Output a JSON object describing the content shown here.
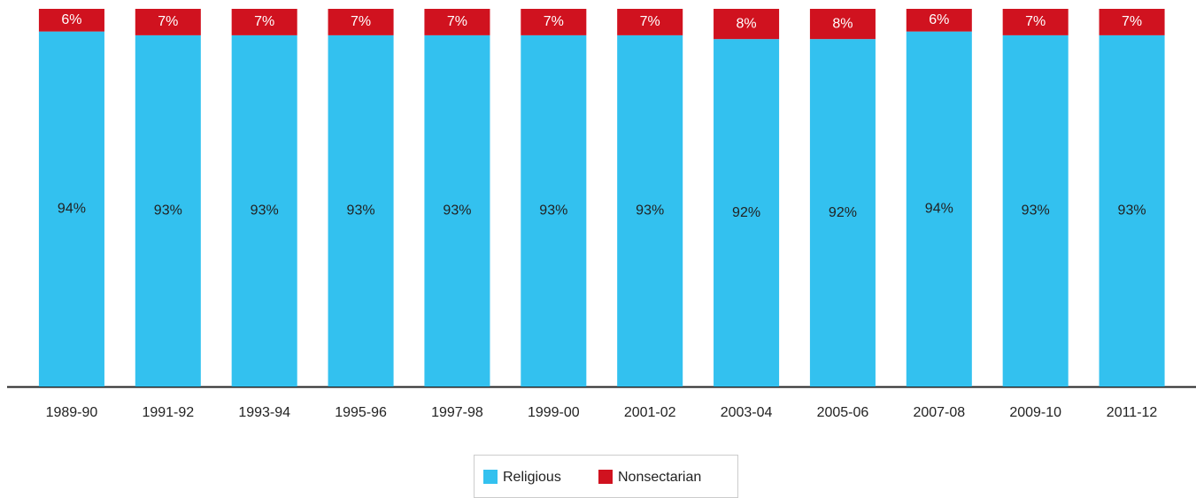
{
  "chart_data": {
    "type": "stacked-bar",
    "categories": [
      "1989-90",
      "1991-92",
      "1993-94",
      "1995-96",
      "1997-98",
      "1999-00",
      "2001-02",
      "2003-04",
      "2005-06",
      "2007-08",
      "2009-10",
      "2011-12"
    ],
    "series": [
      {
        "name": "Religious",
        "color": "#33c1ef",
        "values": [
          94,
          93,
          93,
          93,
          93,
          93,
          93,
          92,
          92,
          94,
          93,
          93
        ],
        "value_labels": [
          "94%",
          "93%",
          "93%",
          "93%",
          "93%",
          "93%",
          "93%",
          "92%",
          "92%",
          "94%",
          "93%",
          "93%"
        ]
      },
      {
        "name": "Nonsectarian",
        "color": "#d0121f",
        "values": [
          6,
          7,
          7,
          7,
          7,
          7,
          7,
          8,
          8,
          6,
          7,
          7
        ],
        "value_labels": [
          "6%",
          "7%",
          "7%",
          "7%",
          "7%",
          "7%",
          "7%",
          "8%",
          "8%",
          "6%",
          "7%",
          "7%"
        ]
      }
    ],
    "ylim": [
      0,
      100
    ]
  }
}
